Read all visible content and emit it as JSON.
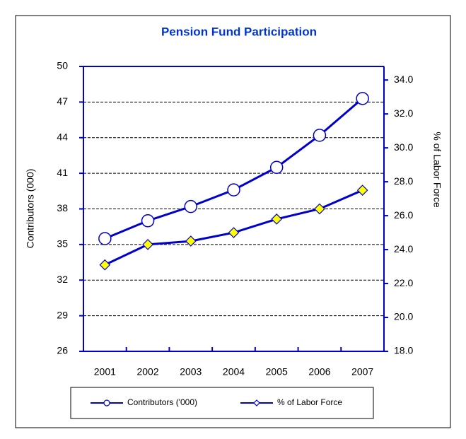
{
  "chart_data": {
    "type": "line",
    "title": "Pension Fund Participation",
    "y_label": "Contributors (000)",
    "y2_label": "% of Labor Force",
    "categories": [
      "2001",
      "2002",
      "2003",
      "2004",
      "2005",
      "2006",
      "2007"
    ],
    "series": [
      {
        "name": "Contributors ('000)",
        "color": "#0000cc",
        "marker": "circle",
        "values": [
          35.5,
          37.0,
          38.2,
          39.6,
          41.5,
          44.2,
          47.3
        ]
      },
      {
        "name": "% of Labor Force",
        "color": "#0000cc",
        "marker": "diamond",
        "axis": "y2",
        "values": [
          23.1,
          24.3,
          24.5,
          25.0,
          25.8,
          26.4,
          27.5
        ]
      }
    ],
    "ylim": [
      26,
      50
    ],
    "yticks": [
      26,
      29,
      32,
      35,
      38,
      41,
      44,
      47,
      50
    ],
    "y2lim": [
      18,
      34.8
    ],
    "y2ticks": [
      {
        "value": 18,
        "label": "18.0"
      },
      {
        "value": 20,
        "label": "20.0"
      },
      {
        "value": 22,
        "label": "22.0"
      },
      {
        "value": 24,
        "label": "24.0"
      },
      {
        "value": 26,
        "label": "26.0"
      },
      {
        "value": 28,
        "label": "28.0"
      },
      {
        "value": 30,
        "label": "30.0"
      },
      {
        "value": 32,
        "label": "32.0"
      },
      {
        "value": 34,
        "label": "34.0"
      }
    ],
    "grid": true,
    "legend": "bottom"
  }
}
